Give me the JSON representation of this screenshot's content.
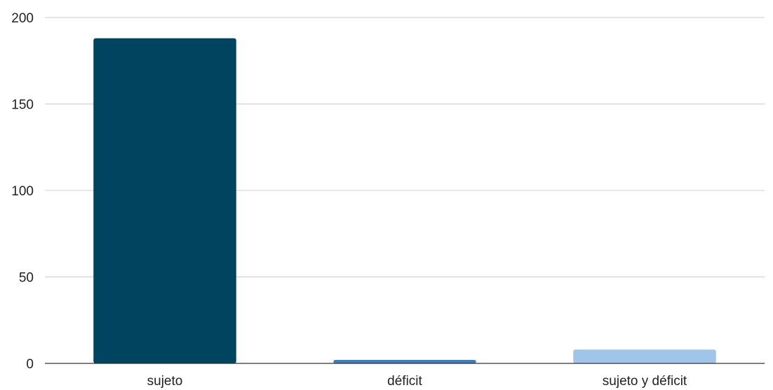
{
  "chart_data": {
    "type": "bar",
    "categories": [
      "sujeto",
      "déficit",
      "sujeto y déficit"
    ],
    "values": [
      188,
      2,
      8
    ],
    "colors": [
      "#00445f",
      "#3d7ebd",
      "#a1c4e9"
    ],
    "ylim": [
      0,
      200
    ],
    "yticks": [
      0,
      50,
      100,
      150,
      200
    ],
    "grid": true,
    "legend": "none"
  }
}
